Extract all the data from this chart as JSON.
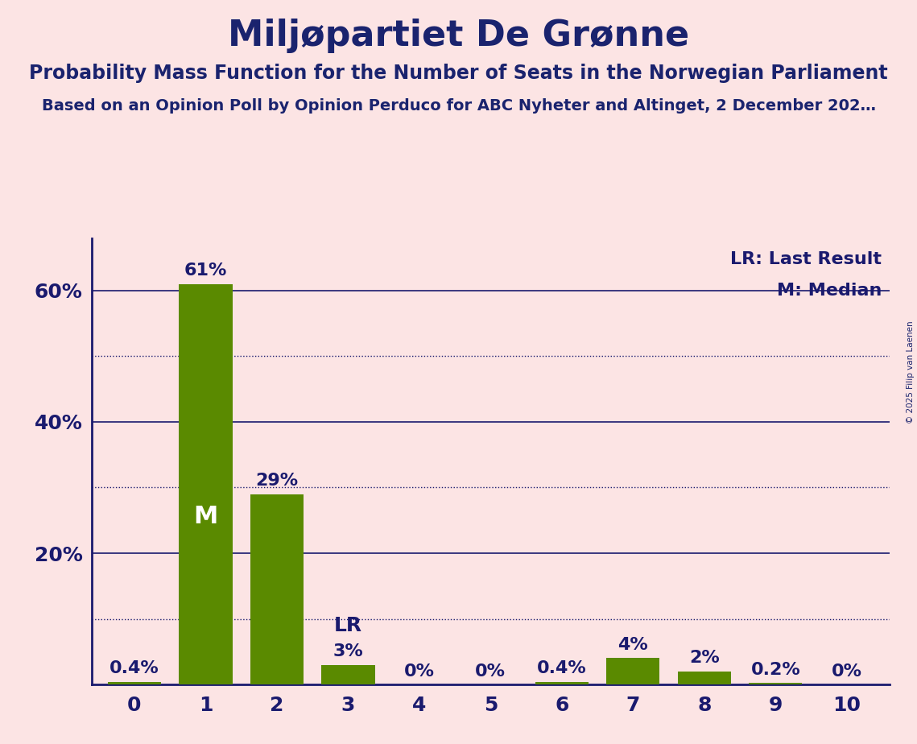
{
  "title": "Miljøpartiet De Grønne",
  "subtitle1": "Probability Mass Function for the Number of Seats in the Norwegian Parliament",
  "subtitle2": "Based on an Opinion Poll by Opinion Perduco for ABC Nyheter and Altinget, 2 December 202…",
  "copyright": "© 2025 Filip van Laenen",
  "seats": [
    0,
    1,
    2,
    3,
    4,
    5,
    6,
    7,
    8,
    9,
    10
  ],
  "probabilities": [
    0.4,
    61,
    29,
    3,
    0,
    0,
    0.4,
    4,
    2,
    0.2,
    0
  ],
  "bar_color": "#5a8a00",
  "background_color": "#fce4e4",
  "axis_color": "#1a1a6e",
  "text_color": "#1a1a6e",
  "title_color": "#1a236e",
  "ylim": [
    0,
    68
  ],
  "median_bar": 1,
  "last_result_bar": 3,
  "legend_lr": "LR: Last Result",
  "legend_m": "M: Median",
  "grid_major_color": "#1a1a6e",
  "grid_minor_color": "#1a1a6e",
  "major_yticks_solid": [
    20,
    40,
    60
  ],
  "minor_yticks_dotted": [
    10,
    30,
    50
  ],
  "title_fontsize": 32,
  "subtitle1_fontsize": 17,
  "subtitle2_fontsize": 14,
  "tick_fontsize": 18,
  "label_fontsize": 16,
  "legend_fontsize": 16,
  "m_fontsize": 22,
  "lr_fontsize": 18
}
